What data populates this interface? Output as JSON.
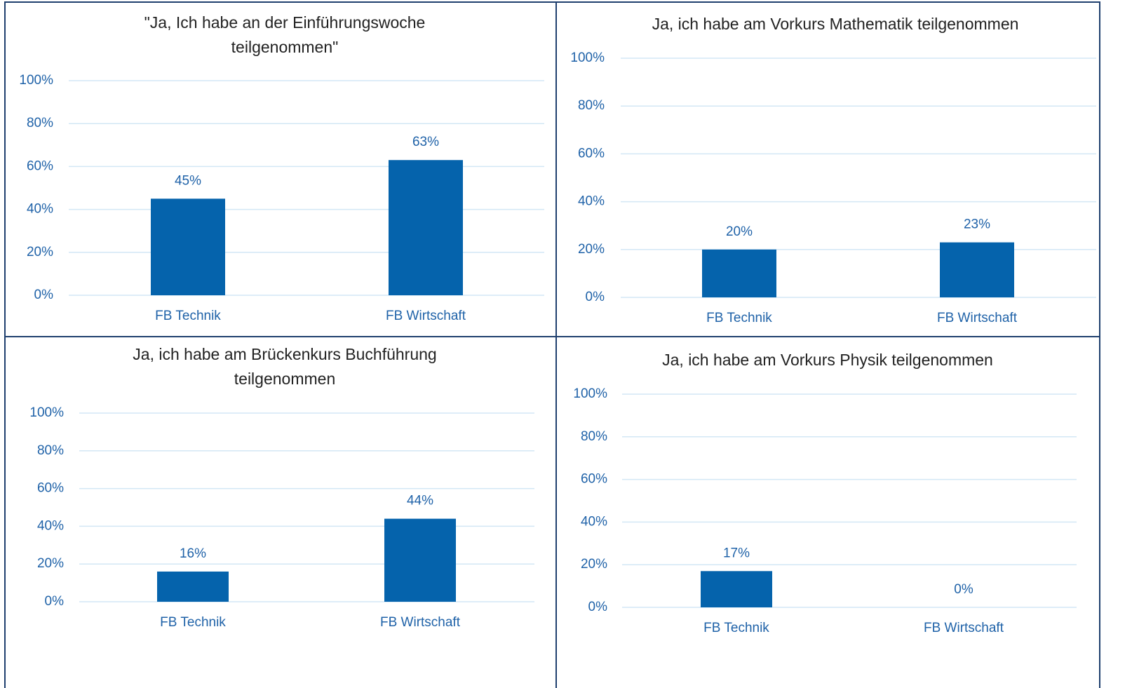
{
  "chart_data": [
    {
      "type": "bar",
      "title": "\"Ja, Ich habe an der Einführungswoche teilgenommen\"",
      "categories": [
        "FB Technik",
        "FB Wirtschaft"
      ],
      "values": [
        45,
        63
      ],
      "value_labels": [
        "45%",
        "63%"
      ],
      "color": "#0563ac",
      "ylim": [
        0,
        100
      ],
      "yticks": [
        {
          "value": 0,
          "label": "0%"
        },
        {
          "value": 20,
          "label": "20%"
        },
        {
          "value": 40,
          "label": "40%"
        },
        {
          "value": 60,
          "label": "60%"
        },
        {
          "value": 80,
          "label": "80%"
        },
        {
          "value": 100,
          "label": "100%"
        }
      ],
      "grid": true
    },
    {
      "type": "bar",
      "title": "Ja, ich habe am Vorkurs Mathematik teilgenommen",
      "categories": [
        "FB Technik",
        "FB Wirtschaft"
      ],
      "values": [
        20,
        23
      ],
      "value_labels": [
        "20%",
        "23%"
      ],
      "color": "#0563ac",
      "ylim": [
        0,
        100
      ],
      "yticks": [
        {
          "value": 0,
          "label": "0%"
        },
        {
          "value": 20,
          "label": "20%"
        },
        {
          "value": 40,
          "label": "40%"
        },
        {
          "value": 60,
          "label": "60%"
        },
        {
          "value": 80,
          "label": "80%"
        },
        {
          "value": 100,
          "label": "100%"
        }
      ],
      "grid": true
    },
    {
      "type": "bar",
      "title": "Ja, ich habe am Brückenkurs Buchführung teilgenommen",
      "categories": [
        "FB Technik",
        "FB Wirtschaft"
      ],
      "values": [
        16,
        44
      ],
      "value_labels": [
        "16%",
        "44%"
      ],
      "color": "#0563ac",
      "ylim": [
        0,
        100
      ],
      "yticks": [
        {
          "value": 0,
          "label": "0%"
        },
        {
          "value": 20,
          "label": "20%"
        },
        {
          "value": 40,
          "label": "40%"
        },
        {
          "value": 60,
          "label": "60%"
        },
        {
          "value": 80,
          "label": "80%"
        },
        {
          "value": 100,
          "label": "100%"
        }
      ],
      "grid": true
    },
    {
      "type": "bar",
      "title": "Ja, ich habe am Vorkurs Physik teilgenommen",
      "categories": [
        "FB Technik",
        "FB Wirtschaft"
      ],
      "values": [
        17,
        0
      ],
      "value_labels": [
        "17%",
        "0%"
      ],
      "color": "#0563ac",
      "ylim": [
        0,
        100
      ],
      "yticks": [
        {
          "value": 0,
          "label": "0%"
        },
        {
          "value": 20,
          "label": "20%"
        },
        {
          "value": 40,
          "label": "40%"
        },
        {
          "value": 60,
          "label": "60%"
        },
        {
          "value": 80,
          "label": "80%"
        },
        {
          "value": 100,
          "label": "100%"
        }
      ],
      "grid": true
    }
  ]
}
